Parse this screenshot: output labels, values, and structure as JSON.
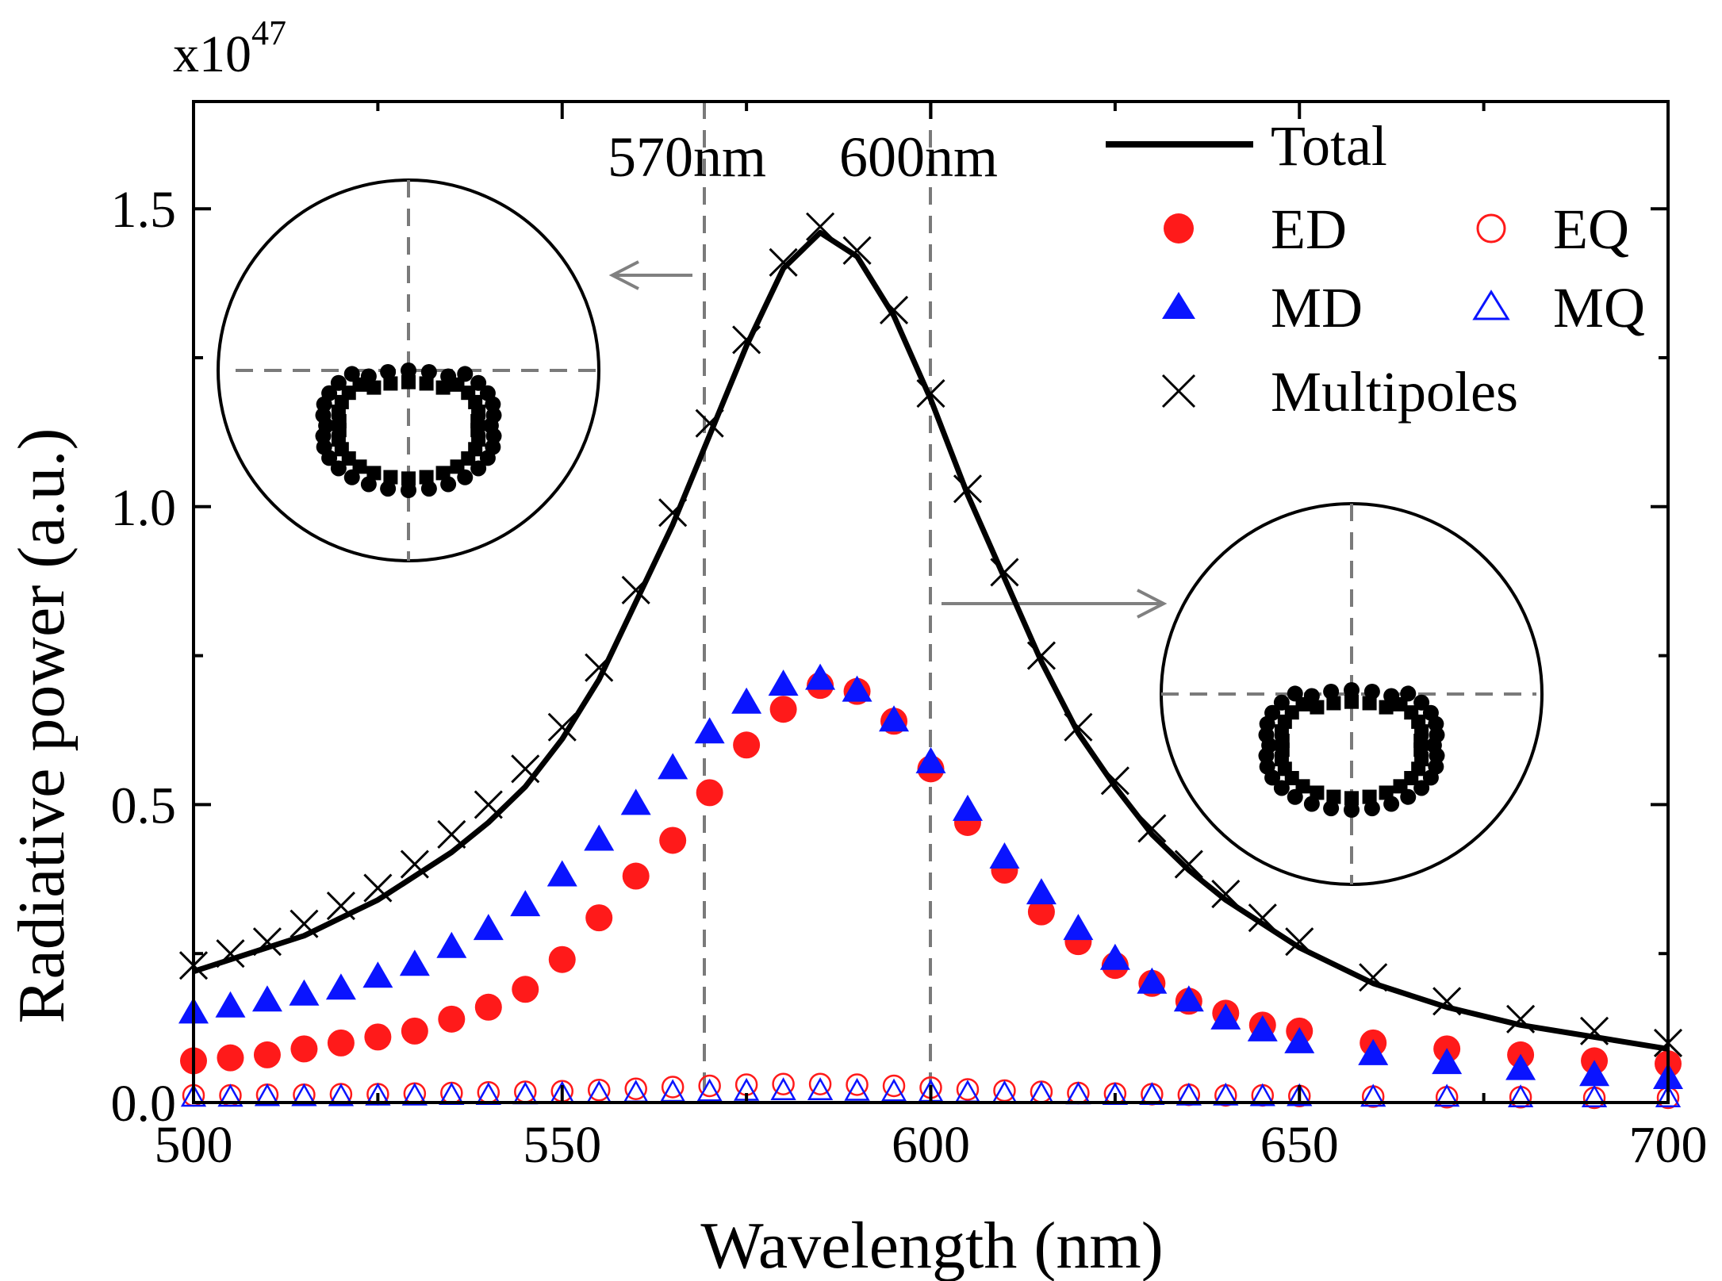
{
  "chart_data": {
    "type": "line",
    "title": "",
    "exponent_label": "x10",
    "exponent_power": "47",
    "xlabel": "Wavelength (nm)",
    "ylabel": "Radiative power (a.u.)",
    "xlim": [
      500,
      700
    ],
    "ylim": [
      0,
      1.68
    ],
    "xticks": [
      "500",
      "550",
      "600",
      "650",
      "700"
    ],
    "yticks": [
      "0.0",
      "0.5",
      "1.0",
      "1.5"
    ],
    "peak_wavelength": 585,
    "annotations": [
      {
        "text": "570nm",
        "x": 570
      },
      {
        "text": "600nm",
        "x": 600
      }
    ],
    "series": [
      {
        "name": "Total",
        "style": "line",
        "color": "#000000",
        "x": [
          500,
          505,
          510,
          515,
          520,
          525,
          530,
          535,
          540,
          545,
          550,
          555,
          560,
          565,
          570,
          575,
          580,
          585,
          590,
          595,
          600,
          605,
          610,
          615,
          620,
          625,
          630,
          635,
          640,
          645,
          650,
          660,
          670,
          680,
          690,
          700
        ],
        "values": [
          0.22,
          0.24,
          0.26,
          0.28,
          0.31,
          0.34,
          0.38,
          0.42,
          0.47,
          0.53,
          0.61,
          0.71,
          0.84,
          0.97,
          1.12,
          1.27,
          1.4,
          1.46,
          1.42,
          1.32,
          1.18,
          1.02,
          0.88,
          0.74,
          0.62,
          0.53,
          0.45,
          0.39,
          0.34,
          0.3,
          0.26,
          0.2,
          0.16,
          0.13,
          0.11,
          0.09
        ]
      },
      {
        "name": "Multipoles",
        "style": "cross",
        "color": "#000000",
        "x": [
          500,
          505,
          510,
          515,
          520,
          525,
          530,
          535,
          540,
          545,
          550,
          555,
          560,
          565,
          570,
          575,
          580,
          585,
          590,
          595,
          600,
          605,
          610,
          615,
          620,
          625,
          630,
          635,
          640,
          645,
          650,
          660,
          670,
          680,
          690,
          700
        ],
        "values": [
          0.23,
          0.25,
          0.27,
          0.3,
          0.33,
          0.36,
          0.4,
          0.45,
          0.5,
          0.56,
          0.63,
          0.73,
          0.86,
          0.99,
          1.14,
          1.28,
          1.41,
          1.47,
          1.43,
          1.33,
          1.19,
          1.03,
          0.89,
          0.75,
          0.63,
          0.54,
          0.46,
          0.4,
          0.35,
          0.31,
          0.27,
          0.21,
          0.17,
          0.14,
          0.12,
          0.1
        ]
      },
      {
        "name": "ED",
        "style": "filled-circle",
        "color": "#ff1a1a",
        "x": [
          500,
          505,
          510,
          515,
          520,
          525,
          530,
          535,
          540,
          545,
          550,
          555,
          560,
          565,
          570,
          575,
          580,
          585,
          590,
          595,
          600,
          605,
          610,
          615,
          620,
          625,
          630,
          635,
          640,
          645,
          650,
          660,
          670,
          680,
          690,
          700
        ],
        "values": [
          0.07,
          0.075,
          0.08,
          0.09,
          0.1,
          0.11,
          0.12,
          0.14,
          0.16,
          0.19,
          0.24,
          0.31,
          0.38,
          0.44,
          0.52,
          0.6,
          0.66,
          0.7,
          0.69,
          0.64,
          0.56,
          0.47,
          0.39,
          0.32,
          0.27,
          0.23,
          0.2,
          0.17,
          0.15,
          0.13,
          0.12,
          0.1,
          0.09,
          0.08,
          0.07,
          0.065
        ]
      },
      {
        "name": "MD",
        "style": "filled-triangle",
        "color": "#0a14ff",
        "x": [
          500,
          505,
          510,
          515,
          520,
          525,
          530,
          535,
          540,
          545,
          550,
          555,
          560,
          565,
          570,
          575,
          580,
          585,
          590,
          595,
          600,
          605,
          610,
          615,
          620,
          625,
          630,
          635,
          640,
          645,
          650,
          660,
          670,
          680,
          690,
          700
        ],
        "values": [
          0.15,
          0.16,
          0.17,
          0.18,
          0.19,
          0.21,
          0.23,
          0.26,
          0.29,
          0.33,
          0.38,
          0.44,
          0.5,
          0.56,
          0.62,
          0.67,
          0.7,
          0.71,
          0.69,
          0.64,
          0.57,
          0.49,
          0.41,
          0.35,
          0.29,
          0.24,
          0.2,
          0.17,
          0.14,
          0.12,
          0.1,
          0.08,
          0.065,
          0.055,
          0.045,
          0.04
        ]
      },
      {
        "name": "EQ",
        "style": "open-circle",
        "color": "#ff1a1a",
        "x": [
          500,
          505,
          510,
          515,
          520,
          525,
          530,
          535,
          540,
          545,
          550,
          555,
          560,
          565,
          570,
          575,
          580,
          585,
          590,
          595,
          600,
          605,
          610,
          615,
          620,
          625,
          630,
          635,
          640,
          645,
          650,
          660,
          670,
          680,
          690,
          700
        ],
        "values": [
          0.012,
          0.012,
          0.013,
          0.013,
          0.014,
          0.014,
          0.015,
          0.016,
          0.017,
          0.018,
          0.019,
          0.021,
          0.023,
          0.026,
          0.028,
          0.03,
          0.031,
          0.031,
          0.03,
          0.028,
          0.025,
          0.022,
          0.02,
          0.018,
          0.016,
          0.015,
          0.014,
          0.013,
          0.012,
          0.012,
          0.011,
          0.01,
          0.009,
          0.009,
          0.008,
          0.008
        ]
      },
      {
        "name": "MQ",
        "style": "open-triangle",
        "color": "#0a14ff",
        "x": [
          500,
          505,
          510,
          515,
          520,
          525,
          530,
          535,
          540,
          545,
          550,
          555,
          560,
          565,
          570,
          575,
          580,
          585,
          590,
          595,
          600,
          605,
          610,
          615,
          620,
          625,
          630,
          635,
          640,
          645,
          650,
          660,
          670,
          680,
          690,
          700
        ],
        "values": [
          0.008,
          0.008,
          0.009,
          0.009,
          0.009,
          0.01,
          0.01,
          0.011,
          0.011,
          0.012,
          0.013,
          0.014,
          0.015,
          0.016,
          0.017,
          0.018,
          0.019,
          0.019,
          0.018,
          0.017,
          0.016,
          0.015,
          0.014,
          0.013,
          0.012,
          0.011,
          0.011,
          0.01,
          0.01,
          0.009,
          0.009,
          0.008,
          0.008,
          0.007,
          0.007,
          0.007
        ]
      }
    ],
    "legend": {
      "position": "top-right",
      "entries": [
        "Total",
        "ED",
        "EQ",
        "MD",
        "MQ",
        "Multipoles"
      ]
    },
    "insets": [
      {
        "name": "radiation-pattern-570nm",
        "near_wavelength": 570
      },
      {
        "name": "radiation-pattern-600nm",
        "near_wavelength": 600
      }
    ]
  }
}
